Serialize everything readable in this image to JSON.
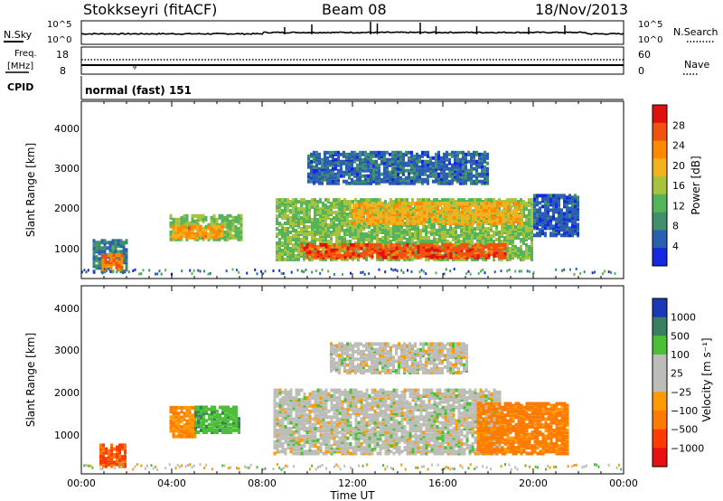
{
  "header": {
    "station": "Stokkseyri (fitACF)",
    "beam": "Beam 08",
    "date": "18/Nov/2013"
  },
  "strips": {
    "nsky_label": "N.Sky",
    "nsearch_label": "N.Search",
    "freq_label_1": "Freq.",
    "freq_label_2": "[MHz]",
    "nave_label": "Nave",
    "cpid_label": "CPID",
    "noise_left_ticks": [
      "10^5",
      "10^0"
    ],
    "noise_right_ticks": [
      "10^5",
      "10^0"
    ],
    "freq_left_ticks": [
      "18",
      "8"
    ],
    "freq_right_ticks": [
      "60",
      "0"
    ],
    "cpid_text": "normal (fast) 151"
  },
  "colors": {
    "power_scale": [
      "#1428e0",
      "#2a5fb0",
      "#3f8f6a",
      "#55b35a",
      "#a7c23c",
      "#f2b21d",
      "#ff8a00",
      "#f2520f",
      "#e0100d"
    ],
    "velocity_scale": [
      "#1a39b5",
      "#3a7f60",
      "#4bbf36",
      "#bdbdb8",
      "#bdbdb8",
      "#ff9a00",
      "#ff7b00",
      "#ff3b00",
      "#e81010"
    ]
  },
  "chart_data": [
    {
      "type": "heatmap",
      "name": "power",
      "ylabel": "Slant Range [km]",
      "yticks": [
        "1000",
        "2000",
        "3000",
        "4000"
      ],
      "ylim": [
        180,
        4600
      ],
      "colorbar_label": "Power [dB]",
      "colorbar_ticks": [
        "4",
        "8",
        "12",
        "16",
        "20",
        "24",
        "28"
      ],
      "clim": [
        0,
        32
      ],
      "regions": [
        {
          "t0": 0.5,
          "t1": 2.0,
          "r0": 400,
          "r1": 1200,
          "v": 8
        },
        {
          "t0": 0.9,
          "t1": 1.8,
          "r0": 450,
          "r1": 850,
          "v": 24
        },
        {
          "t0": 3.9,
          "t1": 7.1,
          "r0": 1200,
          "r1": 1800,
          "v": 14
        },
        {
          "t0": 4.0,
          "t1": 6.2,
          "r0": 1250,
          "r1": 1550,
          "v": 22
        },
        {
          "t0": 8.6,
          "t1": 19.9,
          "r0": 700,
          "r1": 2200,
          "v": 14
        },
        {
          "t0": 9.7,
          "t1": 18.8,
          "r0": 750,
          "r1": 1100,
          "v": 27
        },
        {
          "t0": 12.0,
          "t1": 19.5,
          "r0": 1600,
          "r1": 2100,
          "v": 20
        },
        {
          "t0": 10.0,
          "t1": 18.0,
          "r0": 2600,
          "r1": 3400,
          "v": 6
        },
        {
          "t0": 20.0,
          "t1": 22.0,
          "r0": 1300,
          "r1": 2300,
          "v": 5
        }
      ]
    },
    {
      "type": "heatmap",
      "name": "velocity",
      "ylabel": "Slant Range [km]",
      "yticks": [
        "1000",
        "2000",
        "3000",
        "4000"
      ],
      "ylim": [
        180,
        4600
      ],
      "colorbar_label": "Velocity [m s⁻¹]",
      "colorbar_ticks": [
        "1000",
        "500",
        "100",
        "25",
        "−25",
        "−100",
        "−500",
        "−1000"
      ],
      "regions": [
        {
          "t0": 0.8,
          "t1": 2.0,
          "r0": 400,
          "r1": 900,
          "v": -300
        },
        {
          "t0": 3.9,
          "t1": 5.0,
          "r0": 1100,
          "r1": 1800,
          "v": -150
        },
        {
          "t0": 5.0,
          "t1": 7.0,
          "r0": 1200,
          "r1": 1800,
          "v": 200
        },
        {
          "t0": 8.5,
          "t1": 18.5,
          "r0": 700,
          "r1": 2200,
          "v": 0
        },
        {
          "t0": 11.0,
          "t1": 17.0,
          "r0": 2600,
          "r1": 3300,
          "v": 0
        },
        {
          "t0": 17.5,
          "t1": 21.5,
          "r0": 700,
          "r1": 1900,
          "v": -200
        }
      ],
      "xlabel": "Time UT",
      "xticks": [
        "00:00",
        "04:00",
        "08:00",
        "12:00",
        "16:00",
        "20:00",
        "00:00"
      ],
      "xlim_hours": [
        0,
        24
      ]
    }
  ]
}
